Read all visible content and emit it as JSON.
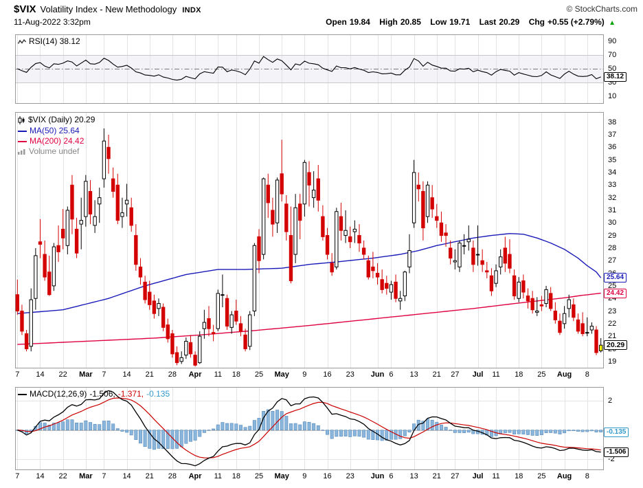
{
  "header": {
    "symbol": "$VIX",
    "title": "Volatility Index - New Methodology",
    "exchange": "INDX",
    "datetime": "11-Aug-2022 3:32pm",
    "copyright": "© StockCharts.com",
    "quote": {
      "open_label": "Open",
      "open_value": "19.84",
      "high_label": "High",
      "high_value": "20.85",
      "low_label": "Low",
      "low_value": "19.71",
      "last_label": "Last",
      "last_value": "20.29",
      "chg_label": "Chg",
      "chg_value": "+0.55 (+2.79%)",
      "chg_arrow": "▲",
      "chg_direction": "up"
    }
  },
  "panels": {
    "rsi": {
      "legend": "RSI(14) 38.12",
      "badge": "38.12",
      "y_ticks": [
        90,
        70,
        50,
        30,
        10
      ],
      "levels": {
        "overbought": 70,
        "mid": 50,
        "oversold": 30
      },
      "ylim": [
        0,
        100
      ]
    },
    "price": {
      "legend_main": "$VIX (Daily) 20.29",
      "legend_ma50": "MA(50) 25.64",
      "legend_ma200": "MA(200) 24.42",
      "legend_volume": "Volume undef",
      "badge_ma50": "25.64",
      "badge_ma200": "24.42",
      "badge_last": "20.29",
      "y_ticks": [
        38,
        37,
        36,
        35,
        34,
        33,
        32,
        31,
        30,
        29,
        28,
        27,
        26,
        25,
        24,
        23,
        22,
        21,
        20,
        19
      ],
      "ylim": [
        18.5,
        38.8
      ]
    },
    "macd": {
      "legend_name": "MACD(12,26,9)",
      "legend_macd": "-1.506,",
      "legend_signal": "-1.371,",
      "legend_hist": "-0.135",
      "badge_hist": "-0.135",
      "badge_macd": "-1.506",
      "y_ticks": [
        2,
        -2
      ]
    }
  },
  "colors": {
    "ma50": "#1a1ab8",
    "ma200": "#e00040",
    "candle_down": "#d40000",
    "candle_up_fill": "#ffffff",
    "candle_stroke": "#000000",
    "last_candle_fill": "#ffff00",
    "rsi_line": "#000000",
    "macd_line": "#000000",
    "macd_signal": "#cc0000",
    "macd_hist_fill": "#8ab6dc",
    "macd_hist_stroke": "#5588bb",
    "macd_hist_label": "#3399cc",
    "volume_legend": "#888888",
    "chg_arrow": "#00a000",
    "grid": "#e4e4e4",
    "panel_border": "#999999",
    "rsi_levels": "#c8c8c8",
    "rsi_mid": "#777777",
    "macd_zero": "#bbbbbb"
  },
  "chart_data": {
    "type": "candlestick",
    "title": "$VIX (Daily)",
    "timeframe": "07-Feb-2022 to 11-Aug-2022, daily bars",
    "x_ticks": [
      {
        "i": 0,
        "label": "7"
      },
      {
        "i": 5,
        "label": "14"
      },
      {
        "i": 10,
        "label": "22"
      },
      {
        "i": 15,
        "label": "Mar",
        "bold": true
      },
      {
        "i": 19,
        "label": "7"
      },
      {
        "i": 24,
        "label": "14"
      },
      {
        "i": 29,
        "label": "21"
      },
      {
        "i": 34,
        "label": "28"
      },
      {
        "i": 39,
        "label": "Apr",
        "bold": true
      },
      {
        "i": 44,
        "label": "11"
      },
      {
        "i": 48,
        "label": "18"
      },
      {
        "i": 53,
        "label": "25"
      },
      {
        "i": 58,
        "label": "May",
        "bold": true
      },
      {
        "i": 63,
        "label": "9"
      },
      {
        "i": 68,
        "label": "16"
      },
      {
        "i": 73,
        "label": "23"
      },
      {
        "i": 79,
        "label": "Jun",
        "bold": true
      },
      {
        "i": 82,
        "label": "6"
      },
      {
        "i": 87,
        "label": "13"
      },
      {
        "i": 92,
        "label": "21"
      },
      {
        "i": 96,
        "label": "27"
      },
      {
        "i": 101,
        "label": "Jul",
        "bold": true
      },
      {
        "i": 105,
        "label": "11"
      },
      {
        "i": 110,
        "label": "18"
      },
      {
        "i": 115,
        "label": "25"
      },
      {
        "i": 120,
        "label": "Aug",
        "bold": true
      },
      {
        "i": 125,
        "label": "8"
      }
    ],
    "ohlc": [
      [
        24.3,
        25.5,
        22.7,
        23.0
      ],
      [
        23.0,
        23.5,
        21.1,
        21.4
      ],
      [
        21.2,
        21.5,
        19.8,
        20.0
      ],
      [
        20.2,
        24.8,
        19.8,
        23.9
      ],
      [
        24.0,
        28.0,
        23.1,
        27.4
      ],
      [
        28.5,
        30.3,
        27.2,
        28.3
      ],
      [
        27.5,
        28.6,
        25.4,
        25.7
      ],
      [
        26.1,
        27.4,
        24.2,
        24.3
      ],
      [
        25.0,
        28.4,
        24.6,
        28.1
      ],
      [
        28.2,
        29.8,
        26.9,
        27.7
      ],
      [
        29.5,
        31.1,
        27.9,
        28.8
      ],
      [
        28.2,
        31.3,
        27.5,
        31.0
      ],
      [
        33.0,
        33.8,
        29.1,
        30.3
      ],
      [
        29.5,
        30.4,
        27.2,
        27.6
      ],
      [
        29.9,
        32.0,
        27.9,
        30.2
      ],
      [
        30.5,
        33.8,
        29.7,
        33.3
      ],
      [
        32.5,
        33.4,
        29.9,
        30.7
      ],
      [
        29.8,
        31.8,
        29.2,
        30.5
      ],
      [
        31.5,
        32.8,
        30.0,
        32.0
      ],
      [
        33.5,
        37.5,
        32.8,
        36.5
      ],
      [
        36.0,
        37.0,
        33.9,
        35.1
      ],
      [
        33.5,
        34.4,
        32.0,
        32.5
      ],
      [
        33.0,
        33.9,
        29.9,
        30.2
      ],
      [
        30.5,
        32.0,
        29.6,
        30.8
      ],
      [
        31.5,
        33.1,
        30.5,
        31.8
      ],
      [
        31.2,
        32.0,
        29.3,
        29.8
      ],
      [
        29.0,
        29.9,
        26.2,
        26.7
      ],
      [
        26.5,
        27.2,
        25.1,
        25.7
      ],
      [
        25.3,
        25.8,
        23.6,
        23.9
      ],
      [
        24.5,
        25.4,
        23.1,
        23.5
      ],
      [
        23.8,
        24.3,
        22.4,
        22.8
      ],
      [
        23.2,
        24.0,
        22.6,
        23.6
      ],
      [
        23.3,
        23.6,
        21.4,
        21.7
      ],
      [
        21.9,
        22.4,
        20.5,
        20.8
      ],
      [
        21.2,
        21.5,
        19.3,
        19.6
      ],
      [
        19.7,
        20.2,
        18.7,
        18.9
      ],
      [
        19.0,
        19.8,
        18.8,
        19.3
      ],
      [
        19.5,
        20.9,
        19.2,
        20.6
      ],
      [
        20.5,
        21.1,
        19.3,
        19.6
      ],
      [
        19.5,
        19.8,
        18.6,
        18.7
      ],
      [
        18.9,
        21.4,
        18.8,
        21.0
      ],
      [
        21.6,
        23.1,
        20.8,
        22.1
      ],
      [
        22.4,
        23.4,
        21.0,
        21.6
      ],
      [
        21.3,
        21.9,
        20.6,
        21.2
      ],
      [
        21.6,
        24.7,
        21.4,
        24.4
      ],
      [
        24.3,
        25.9,
        23.3,
        24.3
      ],
      [
        24.0,
        24.3,
        21.5,
        21.8
      ],
      [
        21.7,
        23.0,
        21.2,
        22.7
      ],
      [
        23.0,
        23.9,
        21.9,
        22.2
      ],
      [
        22.0,
        22.6,
        21.0,
        21.4
      ],
      [
        21.1,
        21.6,
        19.8,
        20.0
      ],
      [
        20.2,
        23.0,
        19.9,
        22.7
      ],
      [
        23.0,
        28.4,
        22.6,
        28.2
      ],
      [
        28.9,
        29.5,
        26.0,
        27.0
      ],
      [
        27.5,
        33.6,
        27.1,
        33.5
      ],
      [
        33.0,
        33.9,
        30.4,
        31.6
      ],
      [
        31.0,
        32.0,
        28.9,
        29.9
      ],
      [
        30.0,
        33.6,
        29.2,
        33.4
      ],
      [
        33.9,
        36.6,
        31.7,
        32.3
      ],
      [
        31.5,
        32.2,
        28.6,
        29.3
      ],
      [
        29.0,
        31.3,
        25.2,
        25.4
      ],
      [
        27.5,
        32.3,
        26.8,
        31.2
      ],
      [
        31.5,
        32.3,
        28.7,
        30.2
      ],
      [
        31.5,
        35.0,
        30.5,
        34.8
      ],
      [
        34.0,
        34.9,
        31.3,
        33.0
      ],
      [
        32.0,
        34.1,
        31.2,
        32.6
      ],
      [
        33.5,
        34.6,
        30.9,
        31.8
      ],
      [
        30.5,
        31.4,
        28.6,
        28.9
      ],
      [
        29.0,
        29.6,
        27.1,
        27.5
      ],
      [
        26.8,
        27.6,
        25.8,
        26.1
      ],
      [
        26.5,
        31.2,
        26.3,
        30.9
      ],
      [
        30.5,
        31.6,
        28.6,
        29.4
      ],
      [
        29.0,
        31.0,
        28.4,
        29.4
      ],
      [
        28.9,
        29.7,
        28.0,
        28.5
      ],
      [
        29.3,
        30.2,
        28.4,
        29.5
      ],
      [
        29.0,
        29.9,
        27.7,
        28.4
      ],
      [
        28.0,
        28.6,
        27.1,
        27.5
      ],
      [
        27.0,
        27.4,
        25.5,
        25.7
      ],
      [
        26.5,
        27.7,
        25.6,
        26.2
      ],
      [
        26.0,
        26.8,
        25.1,
        25.7
      ],
      [
        25.5,
        26.3,
        24.4,
        24.7
      ],
      [
        25.2,
        25.8,
        24.3,
        24.8
      ],
      [
        24.5,
        25.4,
        23.9,
        25.1
      ],
      [
        25.3,
        25.9,
        23.7,
        24.0
      ],
      [
        23.8,
        24.6,
        23.1,
        24.0
      ],
      [
        24.2,
        26.2,
        23.8,
        26.1
      ],
      [
        26.5,
        29.1,
        26.0,
        27.8
      ],
      [
        30.0,
        35.0,
        29.6,
        34.0
      ],
      [
        33.0,
        34.0,
        31.7,
        32.7
      ],
      [
        32.5,
        33.3,
        28.6,
        29.6
      ],
      [
        30.5,
        33.3,
        30.0,
        33.0
      ],
      [
        32.0,
        33.0,
        30.4,
        31.1
      ],
      [
        30.5,
        31.5,
        29.6,
        30.2
      ],
      [
        30.0,
        30.9,
        28.5,
        29.0
      ],
      [
        29.2,
        29.9,
        28.1,
        29.0
      ],
      [
        28.0,
        28.6,
        26.7,
        27.2
      ],
      [
        26.9,
        27.9,
        26.3,
        27.0
      ],
      [
        26.5,
        28.6,
        26.1,
        28.4
      ],
      [
        28.2,
        29.1,
        27.5,
        28.2
      ],
      [
        28.5,
        29.8,
        27.8,
        28.7
      ],
      [
        28.0,
        28.6,
        26.1,
        26.7
      ],
      [
        27.5,
        29.8,
        26.6,
        27.5
      ],
      [
        27.0,
        27.9,
        26.1,
        26.7
      ],
      [
        26.2,
        26.9,
        25.6,
        26.1
      ],
      [
        25.8,
        26.4,
        24.2,
        24.6
      ],
      [
        25.2,
        26.7,
        24.9,
        26.2
      ],
      [
        26.5,
        27.9,
        25.9,
        27.3
      ],
      [
        28.0,
        28.9,
        26.1,
        26.8
      ],
      [
        27.5,
        28.7,
        26.0,
        26.4
      ],
      [
        25.8,
        26.3,
        23.9,
        24.2
      ],
      [
        24.0,
        25.7,
        23.7,
        25.3
      ],
      [
        25.4,
        25.9,
        24.0,
        24.5
      ],
      [
        24.2,
        24.8,
        23.2,
        23.8
      ],
      [
        24.0,
        24.6,
        22.8,
        23.1
      ],
      [
        22.9,
        24.1,
        22.6,
        23.0
      ],
      [
        23.5,
        24.2,
        23.0,
        23.4
      ],
      [
        23.6,
        25.0,
        23.3,
        24.7
      ],
      [
        24.4,
        24.9,
        23.0,
        23.2
      ],
      [
        23.0,
        23.7,
        22.0,
        22.3
      ],
      [
        22.2,
        22.8,
        21.1,
        21.3
      ],
      [
        22.0,
        23.4,
        21.6,
        22.8
      ],
      [
        23.2,
        24.3,
        22.5,
        23.9
      ],
      [
        23.5,
        24.0,
        22.2,
        22.5
      ],
      [
        22.3,
        22.8,
        21.2,
        21.4
      ],
      [
        22.0,
        22.9,
        21.0,
        21.2
      ],
      [
        21.3,
        22.5,
        21.0,
        21.3
      ],
      [
        21.5,
        22.1,
        21.2,
        21.8
      ],
      [
        21.5,
        21.8,
        19.5,
        19.7
      ],
      [
        19.84,
        20.85,
        19.71,
        20.29
      ]
    ],
    "highlight_last_bar": true,
    "overlays": [
      {
        "name": "MA(50)",
        "type": "line",
        "last": 25.64,
        "points": [
          [
            0,
            22.8
          ],
          [
            10,
            23.1
          ],
          [
            20,
            24.0
          ],
          [
            28,
            25.0
          ],
          [
            37,
            25.9
          ],
          [
            44,
            26.3
          ],
          [
            50,
            26.3
          ],
          [
            58,
            26.4
          ],
          [
            64,
            26.7
          ],
          [
            70,
            26.9
          ],
          [
            78,
            27.2
          ],
          [
            84,
            27.5
          ],
          [
            88,
            27.8
          ],
          [
            92,
            28.2
          ],
          [
            96,
            28.5
          ],
          [
            100,
            28.8
          ],
          [
            104,
            29.0
          ],
          [
            108,
            29.15
          ],
          [
            111,
            29.1
          ],
          [
            114,
            28.8
          ],
          [
            117,
            28.4
          ],
          [
            120,
            27.9
          ],
          [
            123,
            27.2
          ],
          [
            125,
            26.6
          ],
          [
            127,
            26.1
          ],
          [
            128,
            25.64
          ]
        ]
      },
      {
        "name": "MA(200)",
        "type": "line",
        "last": 24.42,
        "points": [
          [
            0,
            20.35
          ],
          [
            15,
            20.6
          ],
          [
            30,
            20.85
          ],
          [
            40,
            21.1
          ],
          [
            52,
            21.45
          ],
          [
            64,
            21.85
          ],
          [
            76,
            22.3
          ],
          [
            88,
            22.75
          ],
          [
            100,
            23.2
          ],
          [
            108,
            23.55
          ],
          [
            114,
            23.8
          ],
          [
            120,
            24.05
          ],
          [
            124,
            24.25
          ],
          [
            128,
            24.42
          ]
        ]
      }
    ],
    "indicators": {
      "rsi": {
        "name": "RSI(14)",
        "type": "line",
        "period": 14,
        "source": "close",
        "last": 38.12,
        "ylim": [
          0,
          100
        ],
        "ticks": [
          90,
          70,
          50,
          30,
          10
        ]
      },
      "macd": {
        "name": "MACD(12,26,9)",
        "type": "line+histogram",
        "fast": 12,
        "slow": 26,
        "signal_period": 9,
        "source": "close",
        "last_macd": -1.506,
        "last_signal": -1.371,
        "last_hist": -0.135,
        "ticks": [
          2,
          -2
        ]
      }
    },
    "price_ylim": [
      18.5,
      38.8
    ],
    "grid": "vertical-at-ticks",
    "legend_position": "top-left"
  }
}
